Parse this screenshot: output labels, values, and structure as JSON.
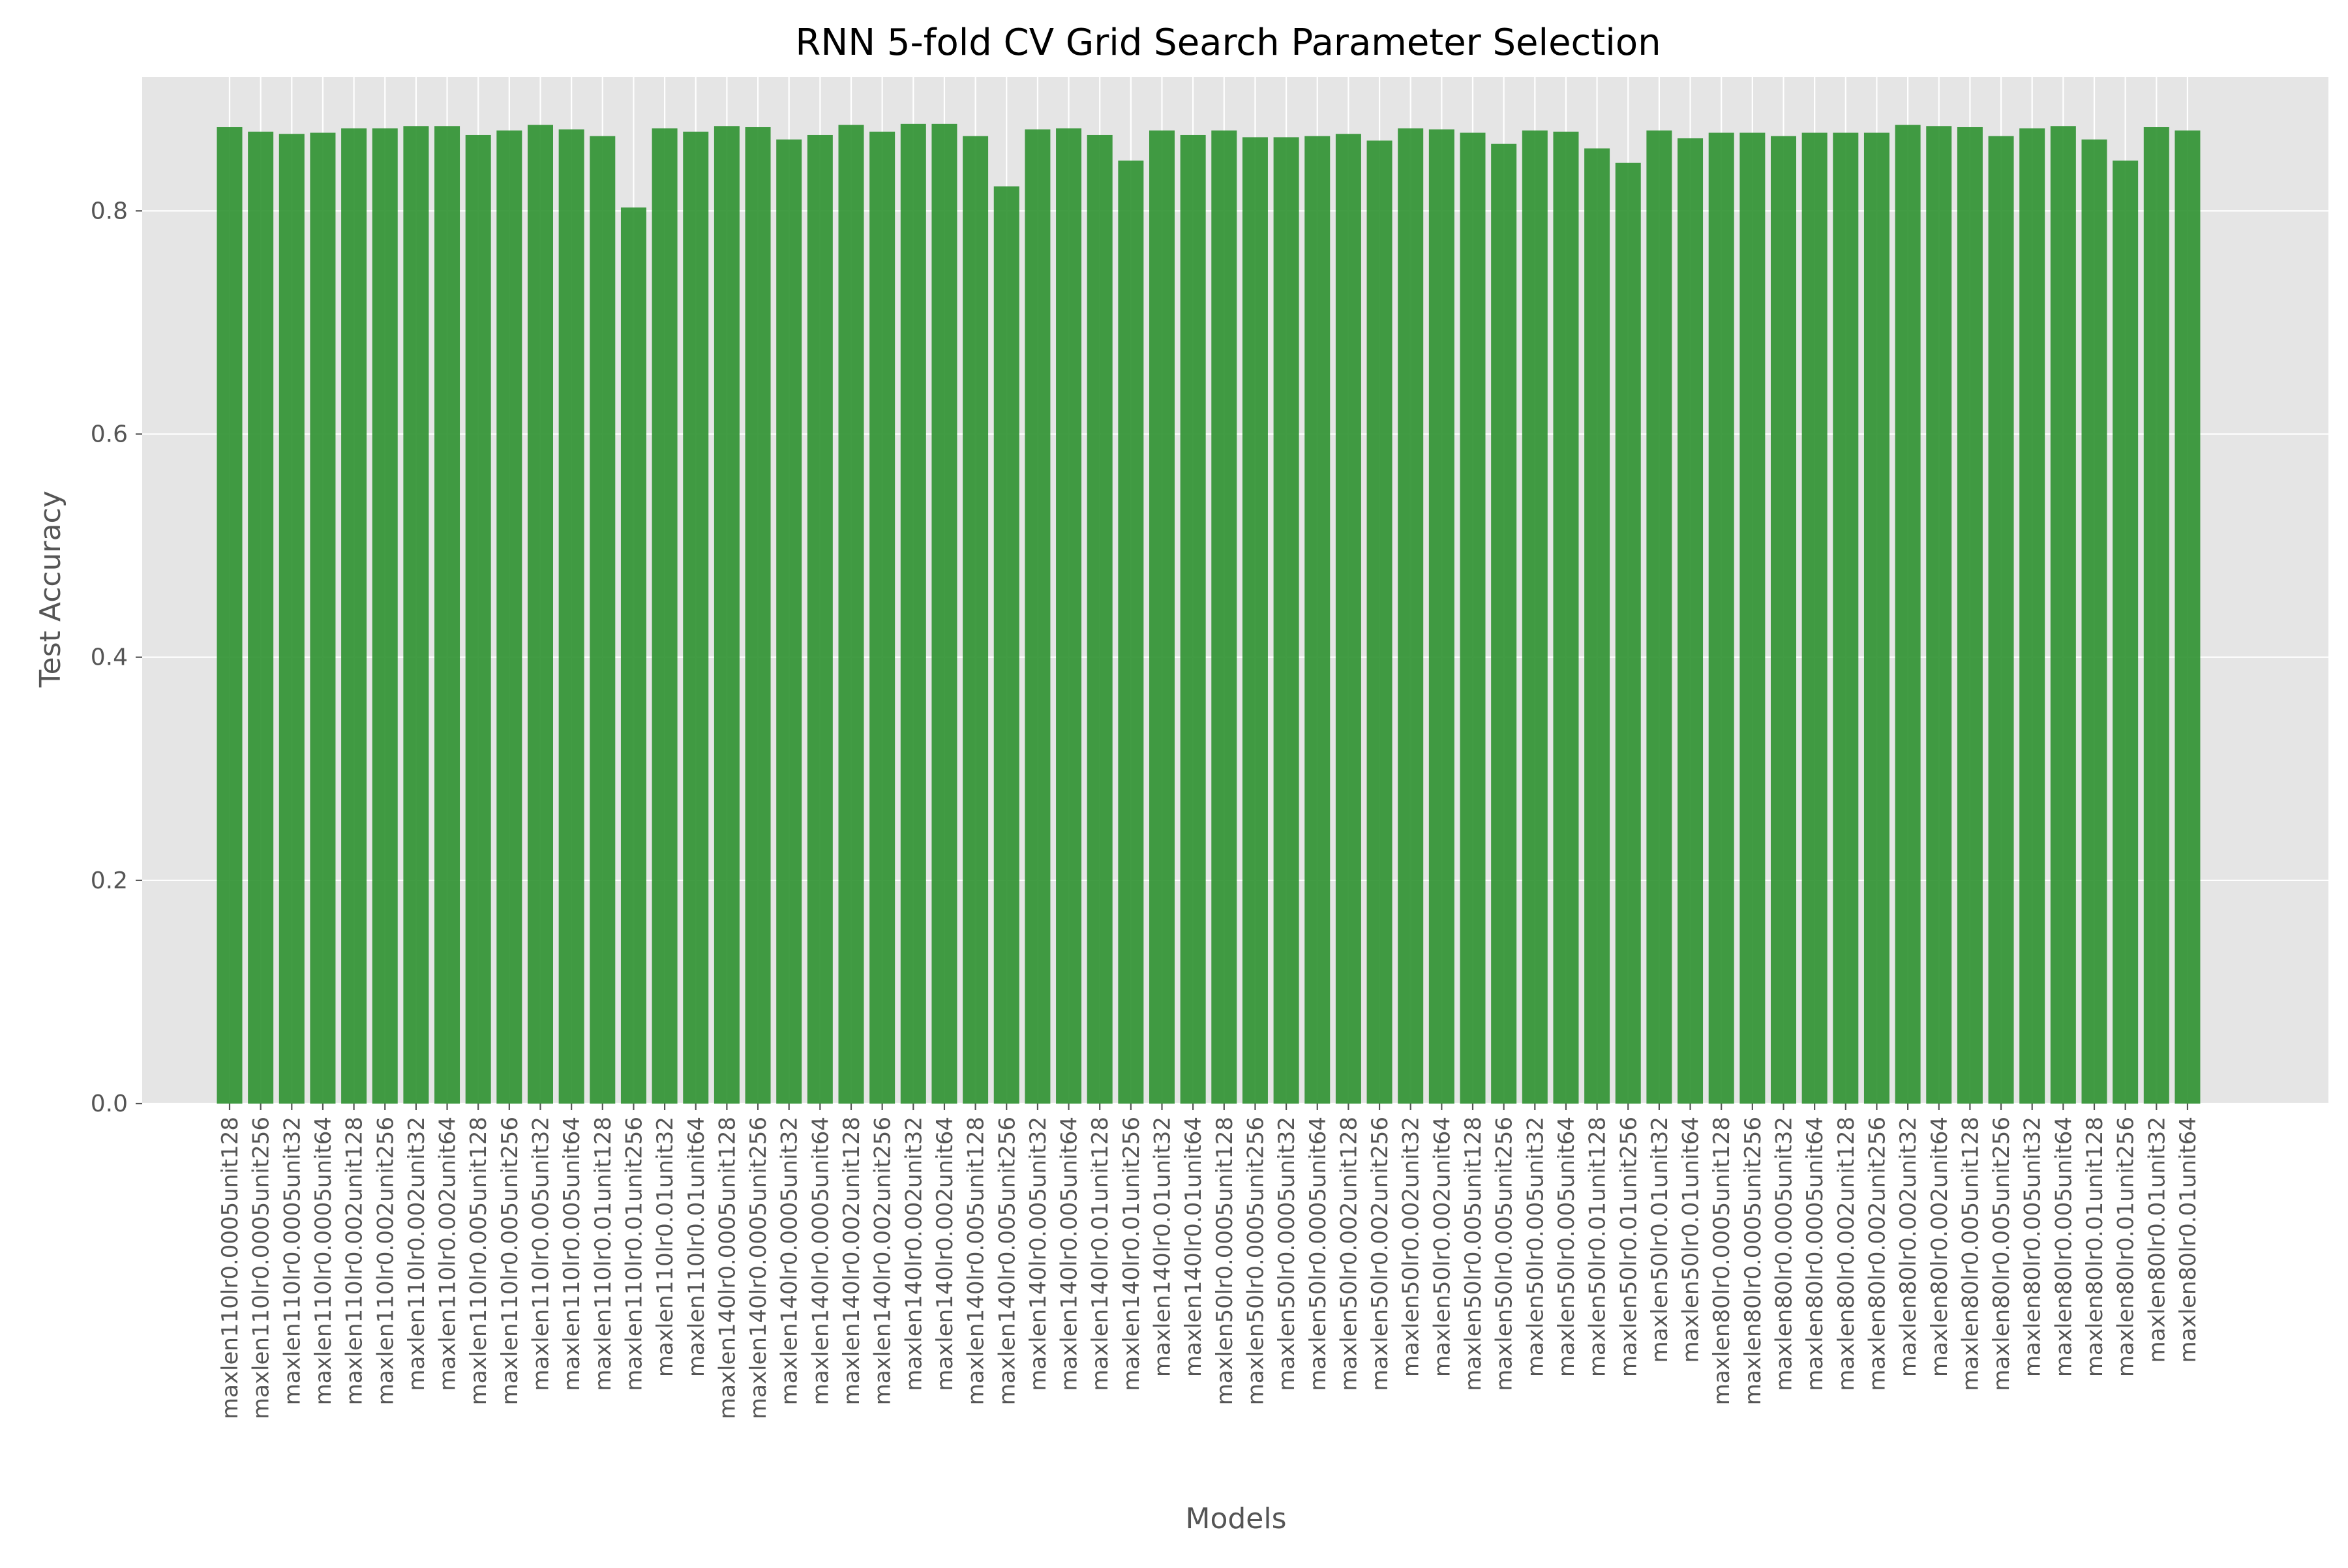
{
  "chart_data": {
    "type": "bar",
    "title": "RNN 5-fold CV Grid Search Parameter Selection",
    "xlabel": "Models",
    "ylabel": "Test Accuracy",
    "ylim": [
      0,
      0.92
    ],
    "yticks": [
      0.0,
      0.2,
      0.4,
      0.6,
      0.8
    ],
    "ytick_labels": [
      "0.0",
      "0.2",
      "0.4",
      "0.6",
      "0.8"
    ],
    "grid": true,
    "colors": {
      "bar": "#2e9130",
      "plot_bg": "#e5e5e5",
      "grid": "#ffffff",
      "text": "#333333",
      "tick_text": "#555555"
    },
    "categories": [
      "maxlen110lr0.0005unit128",
      "maxlen110lr0.0005unit256",
      "maxlen110lr0.0005unit32",
      "maxlen110lr0.0005unit64",
      "maxlen110lr0.002unit128",
      "maxlen110lr0.002unit256",
      "maxlen110lr0.002unit32",
      "maxlen110lr0.002unit64",
      "maxlen110lr0.005unit128",
      "maxlen110lr0.005unit256",
      "maxlen110lr0.005unit32",
      "maxlen110lr0.005unit64",
      "maxlen110lr0.01unit128",
      "maxlen110lr0.01unit256",
      "maxlen110lr0.01unit32",
      "maxlen110lr0.01unit64",
      "maxlen140lr0.0005unit128",
      "maxlen140lr0.0005unit256",
      "maxlen140lr0.0005unit32",
      "maxlen140lr0.0005unit64",
      "maxlen140lr0.002unit128",
      "maxlen140lr0.002unit256",
      "maxlen140lr0.002unit32",
      "maxlen140lr0.002unit64",
      "maxlen140lr0.005unit128",
      "maxlen140lr0.005unit256",
      "maxlen140lr0.005unit32",
      "maxlen140lr0.005unit64",
      "maxlen140lr0.01unit128",
      "maxlen140lr0.01unit256",
      "maxlen140lr0.01unit32",
      "maxlen140lr0.01unit64",
      "maxlen50lr0.0005unit128",
      "maxlen50lr0.0005unit256",
      "maxlen50lr0.0005unit32",
      "maxlen50lr0.0005unit64",
      "maxlen50lr0.002unit128",
      "maxlen50lr0.002unit256",
      "maxlen50lr0.002unit32",
      "maxlen50lr0.002unit64",
      "maxlen50lr0.005unit128",
      "maxlen50lr0.005unit256",
      "maxlen50lr0.005unit32",
      "maxlen50lr0.005unit64",
      "maxlen50lr0.01unit128",
      "maxlen50lr0.01unit256",
      "maxlen50lr0.01unit32",
      "maxlen50lr0.01unit64",
      "maxlen80lr0.0005unit128",
      "maxlen80lr0.0005unit256",
      "maxlen80lr0.0005unit32",
      "maxlen80lr0.0005unit64",
      "maxlen80lr0.002unit128",
      "maxlen80lr0.002unit256",
      "maxlen80lr0.002unit32",
      "maxlen80lr0.002unit64",
      "maxlen80lr0.005unit128",
      "maxlen80lr0.005unit256",
      "maxlen80lr0.005unit32",
      "maxlen80lr0.005unit64",
      "maxlen80lr0.01unit128",
      "maxlen80lr0.01unit256",
      "maxlen80lr0.01unit32",
      "maxlen80lr0.01unit64"
    ],
    "values": [
      0.875,
      0.871,
      0.869,
      0.87,
      0.874,
      0.874,
      0.876,
      0.876,
      0.868,
      0.872,
      0.877,
      0.873,
      0.867,
      0.803,
      0.874,
      0.871,
      0.876,
      0.875,
      0.864,
      0.868,
      0.877,
      0.871,
      0.878,
      0.878,
      0.867,
      0.822,
      0.873,
      0.874,
      0.868,
      0.845,
      0.872,
      0.868,
      0.872,
      0.866,
      0.866,
      0.867,
      0.869,
      0.863,
      0.874,
      0.873,
      0.87,
      0.86,
      0.872,
      0.871,
      0.856,
      0.843,
      0.872,
      0.865,
      0.87,
      0.87,
      0.867,
      0.87,
      0.87,
      0.87,
      0.877,
      0.876,
      0.875,
      0.867,
      0.874,
      0.876,
      0.864,
      0.845,
      0.875,
      0.872
    ]
  }
}
